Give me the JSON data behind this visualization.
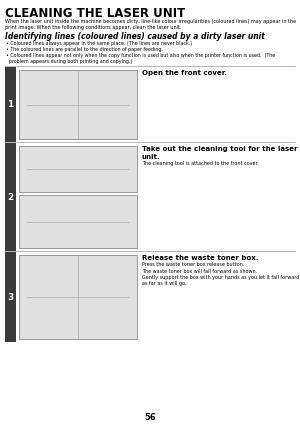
{
  "title": "CLEANING THE LASER UNIT",
  "intro_text": "When the laser unit inside the machine becomes dirty, line-like colour irregularities (coloured lines) may appear in the\nprint image. When the following conditions appear, clean the laser unit.",
  "section_title": "Identifying lines (coloured lines) caused by a dirty laser unit",
  "bullets": [
    "• Coloured lines always appear in the same place. (The lines are never black.)",
    "• The coloured lines are parallel to the direction of paper feeding.",
    "• Coloured lines appear not only when the copy function is used but also when the printer function is used.  (The\n  problem appears during both printing and copying.)"
  ],
  "steps": [
    {
      "number": "1",
      "title": "Open the front cover.",
      "detail": "",
      "num_images": 1
    },
    {
      "number": "2",
      "title": "Take out the cleaning tool for the laser\nunit.",
      "detail": "The cleaning tool is attached to the front cover.",
      "num_images": 2
    },
    {
      "number": "3",
      "title": "Release the waste toner box.",
      "detail": "Press the waste toner box release button.",
      "detail2": "The waste toner box will fall forward as shown.\nGently support the box with your hands as you let it fall forward\nas far as it will go.",
      "num_images": 1
    }
  ],
  "page_number": "56",
  "bg_color": "#ffffff",
  "step_bar_color": "#3a3a3a",
  "step_num_color": "#ffffff",
  "image_bg": "#e0e0e0",
  "image_border": "#888888"
}
